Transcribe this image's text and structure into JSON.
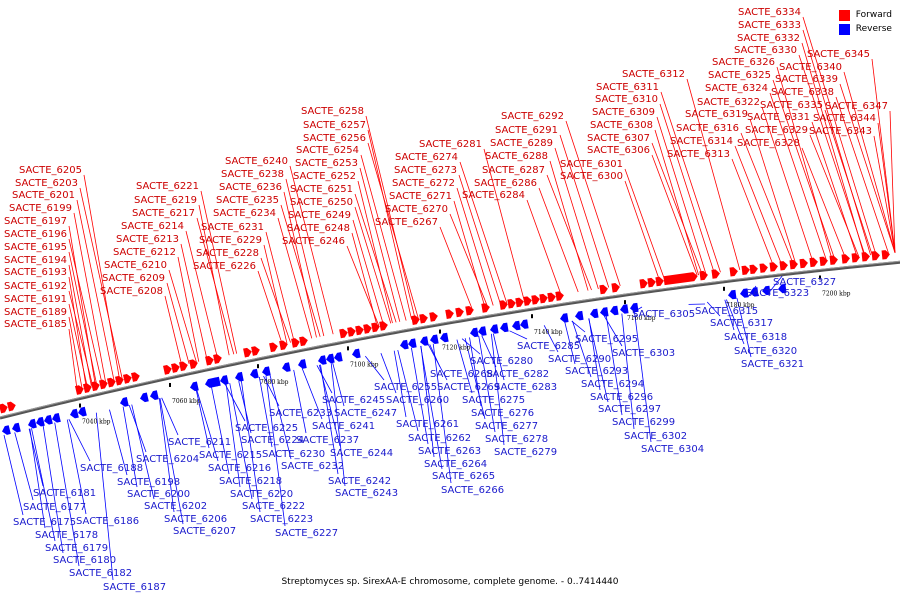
{
  "legend": {
    "forward": {
      "label": "Forward",
      "color": "#ff0000"
    },
    "reverse": {
      "label": "Reverse",
      "color": "#0000ff"
    }
  },
  "caption": "Streptomyces sp. SirexAA-E chromosome, complete genome. - 0..7414440",
  "tick_labels": [
    "7040 kbp",
    "7060 kbp",
    "7080 kbp",
    "7100 kbp",
    "7120 kbp",
    "7140 kbp",
    "7160 kbp",
    "7180 kbp",
    "7200 kbp"
  ],
  "forward_genes": [
    "SACTE_6185",
    "SACTE_6189",
    "SACTE_6191",
    "SACTE_6192",
    "SACTE_6193",
    "SACTE_6194",
    "SACTE_6195",
    "SACTE_6196",
    "SACTE_6197",
    "SACTE_6199",
    "SACTE_6201",
    "SACTE_6203",
    "SACTE_6205",
    "SACTE_6208",
    "SACTE_6209",
    "SACTE_6210",
    "SACTE_6212",
    "SACTE_6213",
    "SACTE_6214",
    "SACTE_6217",
    "SACTE_6219",
    "SACTE_6221",
    "SACTE_6226",
    "SACTE_6228",
    "SACTE_6229",
    "SACTE_6231",
    "SACTE_6234",
    "SACTE_6235",
    "SACTE_6236",
    "SACTE_6238",
    "SACTE_6240",
    "SACTE_6246",
    "SACTE_6248",
    "SACTE_6249",
    "SACTE_6250",
    "SACTE_6251",
    "SACTE_6252",
    "SACTE_6253",
    "SACTE_6254",
    "SACTE_6256",
    "SACTE_6257",
    "SACTE_6258",
    "SACTE_6267",
    "SACTE_6270",
    "SACTE_6271",
    "SACTE_6272",
    "SACTE_6273",
    "SACTE_6274",
    "SACTE_6281",
    "SACTE_6284",
    "SACTE_6286",
    "SACTE_6287",
    "SACTE_6288",
    "SACTE_6289",
    "SACTE_6291",
    "SACTE_6292",
    "SACTE_6300",
    "SACTE_6301",
    "SACTE_6306",
    "SACTE_6307",
    "SACTE_6308",
    "SACTE_6309",
    "SACTE_6310",
    "SACTE_6311",
    "SACTE_6312",
    "SACTE_6313",
    "SACTE_6314",
    "SACTE_6316",
    "SACTE_6319",
    "SACTE_6322",
    "SACTE_6324",
    "SACTE_6325",
    "SACTE_6326",
    "SACTE_6328",
    "SACTE_6329",
    "SACTE_6330",
    "SACTE_6331",
    "SACTE_6332",
    "SACTE_6333",
    "SACTE_6334",
    "SACTE_6335",
    "SACTE_6338",
    "SACTE_6339",
    "SACTE_6340",
    "SACTE_6343",
    "SACTE_6344",
    "SACTE_6345",
    "SACTE_6347"
  ],
  "reverse_genes": [
    "SACTE_6175",
    "SACTE_6177",
    "SACTE_6178",
    "SACTE_6179",
    "SACTE_6180",
    "SACTE_6181",
    "SACTE_6182",
    "SACTE_6186",
    "SACTE_6187",
    "SACTE_6188",
    "SACTE_6198",
    "SACTE_6200",
    "SACTE_6202",
    "SACTE_6204",
    "SACTE_6206",
    "SACTE_6207",
    "SACTE_6211",
    "SACTE_6215",
    "SACTE_6216",
    "SACTE_6218",
    "SACTE_6220",
    "SACTE_6222",
    "SACTE_6223",
    "SACTE_6224",
    "SACTE_6225",
    "SACTE_6227",
    "SACTE_6230",
    "SACTE_6232",
    "SACTE_6233",
    "SACTE_6237",
    "SACTE_6241",
    "SACTE_6242",
    "SACTE_6243",
    "SACTE_6244",
    "SACTE_6245",
    "SACTE_6247",
    "SACTE_6255",
    "SACTE_6260",
    "SACTE_6261",
    "SACTE_6262",
    "SACTE_6263",
    "SACTE_6264",
    "SACTE_6265",
    "SACTE_6266",
    "SACTE_6268",
    "SACTE_6269",
    "SACTE_6275",
    "SACTE_6276",
    "SACTE_6277",
    "SACTE_6278",
    "SACTE_6279",
    "SACTE_6280",
    "SACTE_6282",
    "SACTE_6283",
    "SACTE_6285",
    "SACTE_6290",
    "SACTE_6293",
    "SACTE_6294",
    "SACTE_6295",
    "SACTE_6296",
    "SACTE_6297",
    "SACTE_6299",
    "SACTE_6302",
    "SACTE_6303",
    "SACTE_6304",
    "SACTE_6305",
    "SACTE_6315",
    "SACTE_6317",
    "SACTE_6318",
    "SACTE_6320",
    "SACTE_6321",
    "SACTE_6323",
    "SACTE_6327"
  ]
}
